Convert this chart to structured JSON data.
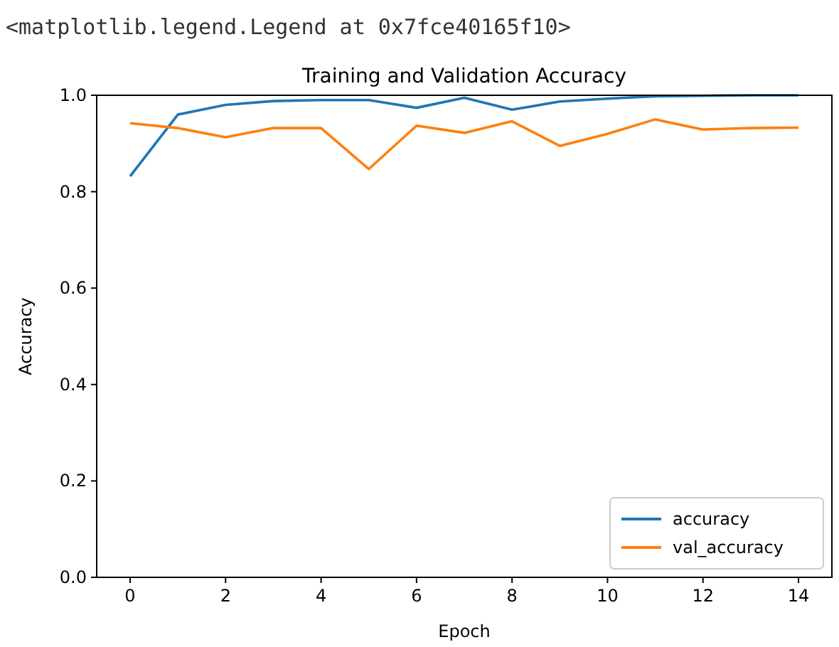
{
  "chart_data": {
    "type": "line",
    "title": "Training and Validation Accuracy",
    "xlabel": "Epoch",
    "ylabel": "Accuracy",
    "annotations": [
      "<matplotlib.legend.Legend at 0x7fce40165f10>"
    ],
    "x": [
      0,
      1,
      2,
      3,
      4,
      5,
      6,
      7,
      8,
      9,
      10,
      11,
      12,
      13,
      14
    ],
    "series": [
      {
        "name": "accuracy",
        "color": "#1f77b4",
        "values": [
          0.832,
          0.96,
          0.98,
          0.988,
          0.99,
          0.99,
          0.974,
          0.995,
          0.97,
          0.987,
          0.993,
          0.998,
          0.999,
          1.0,
          1.0
        ]
      },
      {
        "name": "val_accuracy",
        "color": "#ff7f0e",
        "values": [
          0.942,
          0.932,
          0.913,
          0.932,
          0.932,
          0.847,
          0.937,
          0.922,
          0.946,
          0.895,
          0.92,
          0.95,
          0.929,
          0.932,
          0.933
        ]
      }
    ],
    "xlim": [
      -0.7,
      14.7
    ],
    "ylim": [
      0,
      1
    ],
    "xticks": [
      0,
      2,
      4,
      6,
      8,
      10,
      12,
      14
    ],
    "yticks": [
      {
        "value": 0,
        "label": "0.0"
      },
      {
        "value": 0.2,
        "label": "0.2"
      },
      {
        "value": 0.4,
        "label": "0.4"
      },
      {
        "value": 0.6,
        "label": "0.6"
      },
      {
        "value": 0.8,
        "label": "0.8"
      },
      {
        "value": 1,
        "label": "1.0"
      }
    ],
    "legend": "bottom right",
    "grid": false
  }
}
